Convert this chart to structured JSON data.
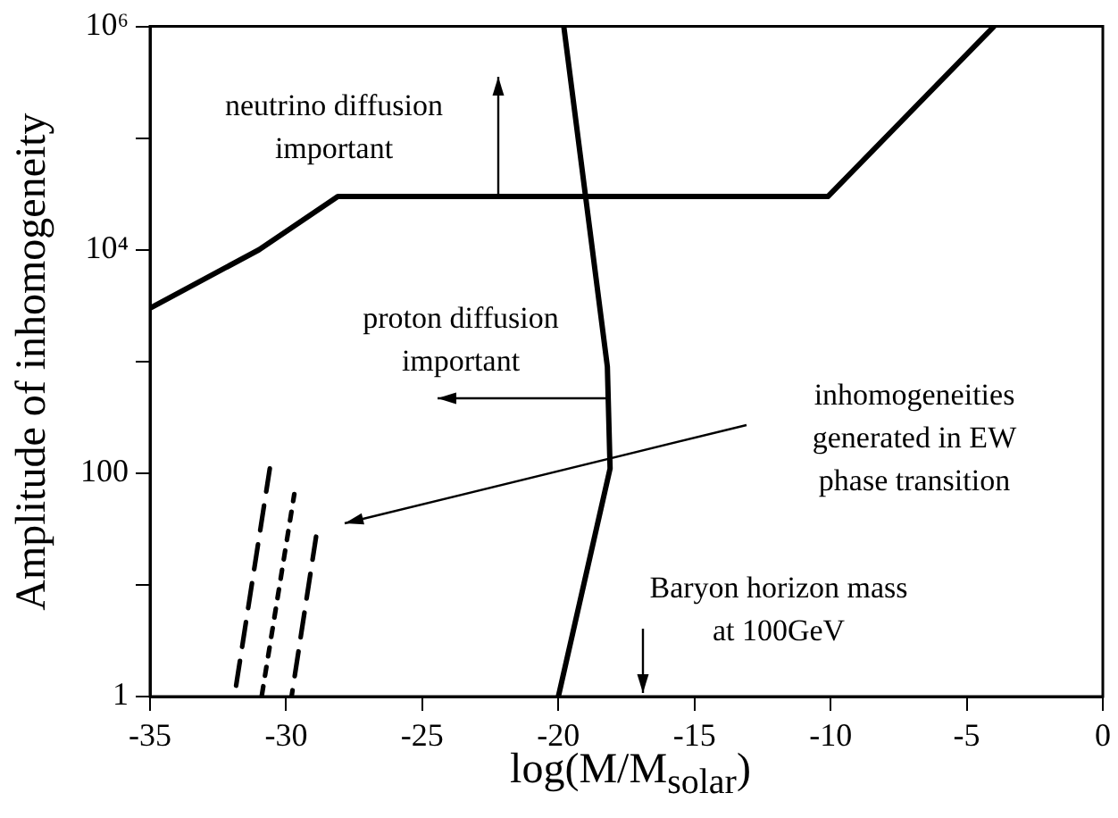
{
  "chart_data": {
    "type": "line",
    "xlabel": "log(M/M$_{solar}$)",
    "ylabel": "Amplitude of inhomogeneity",
    "log": "y",
    "grid": false,
    "legend": false,
    "marker": "none",
    "xlim": [
      -35,
      0
    ],
    "xticks": [
      -35,
      -30,
      -25,
      -20,
      -15,
      -10,
      -5,
      0
    ],
    "ylim": [
      1,
      1000000
    ],
    "yticks": [
      1,
      {
        "value": 10,
        "label": null
      },
      100,
      {
        "value": 1000,
        "label": null
      },
      {
        "value": 10000,
        "label": "10⁴"
      },
      {
        "value": 100000,
        "label": null
      },
      {
        "value": 1000000,
        "label": "10⁶"
      }
    ],
    "series": [
      {
        "color": "#000000",
        "line_style": "solid",
        "x": [
          -35,
          -31,
          -28.1,
          -10.1,
          -4
        ],
        "values": [
          3000,
          10000,
          30000,
          30000,
          1000000
        ]
      },
      {
        "color": "#000000",
        "line_style": "solid",
        "x": [
          -19.8,
          -19,
          -18.2,
          -18.1,
          -20
        ],
        "values": [
          1000000,
          30000,
          900,
          110,
          1
        ]
      },
      {
        "color": "#000000",
        "line_style": "dashed",
        "x": [
          -31.9,
          -30.6
        ],
        "values": [
          1,
          110
        ]
      },
      {
        "color": "#000000",
        "line_style": "dotted",
        "x": [
          -30.9,
          -29.7
        ],
        "values": [
          1,
          65
        ]
      },
      {
        "color": "#000000",
        "line_style": "dashed",
        "x": [
          -29.8,
          -28.9
        ],
        "values": [
          1,
          27
        ]
      }
    ],
    "annotations": [
      "neutrino diffusion\nimportant",
      "proton diffusion\nimportant",
      "inhomogeneities\ngenerated in EW\nphase transition",
      "Baryon horizon mass\nat 100GeV"
    ]
  }
}
